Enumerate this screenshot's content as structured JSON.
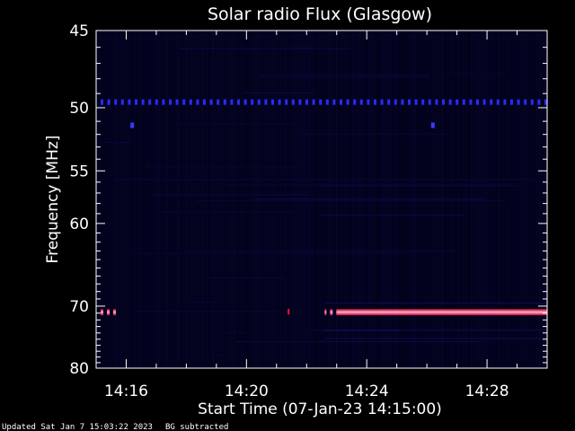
{
  "chart_data": {
    "type": "heatmap",
    "title": "Solar radio Flux (Glasgow)",
    "xlabel": "Start Time (07-Jan-23 14:15:00)",
    "ylabel": "Frequency [MHz]",
    "x_start_minutes": 0,
    "x_end_minutes": 15,
    "x_ticks": [
      {
        "label": "14:16",
        "minutes": 1
      },
      {
        "label": "14:20",
        "minutes": 5
      },
      {
        "label": "14:24",
        "minutes": 9
      },
      {
        "label": "14:28",
        "minutes": 13
      }
    ],
    "y_scale": "reciprocal",
    "ylim": [
      45,
      80
    ],
    "y_ticks": [
      45,
      50,
      55,
      60,
      70,
      80
    ],
    "y_tick_labels": [
      "45",
      "50",
      "55",
      "60",
      "70",
      "80"
    ],
    "colors": {
      "background": "#000000",
      "plot_background": "#02021a",
      "axes": "#ffffff",
      "low_signal": "#1a1a8c",
      "interference_band": "#ff1040",
      "interference_core": "#ffd0e0"
    },
    "features": [
      {
        "name": "blue dashed line",
        "frequency_mhz": 49.6,
        "x_start_minutes": 0.15,
        "x_end_minutes": 15,
        "color": "#2a2aff",
        "pattern": "dashed"
      },
      {
        "name": "blue dot",
        "frequency_mhz": 51.3,
        "x_minutes": 1.2,
        "color": "#3a3aff"
      },
      {
        "name": "blue dot",
        "frequency_mhz": 51.3,
        "x_minutes": 11.2,
        "color": "#3a3aff"
      },
      {
        "name": "red band segment",
        "frequency_mhz": 70.8,
        "x_start_minutes": 0.15,
        "x_end_minutes": 0.6,
        "color": "#ff1040",
        "pattern": "dashed"
      },
      {
        "name": "red band tick",
        "frequency_mhz": 70.8,
        "x_minutes": 6.4,
        "color": "#ff1040"
      },
      {
        "name": "red band segment",
        "frequency_mhz": 70.8,
        "x_start_minutes": 7.6,
        "x_end_minutes": 15,
        "color": "#ff1040",
        "pattern": "solid"
      }
    ],
    "grid": false,
    "legend": "none"
  },
  "footer": {
    "updated": "Updated Sat Jan  7 15:03:22 2023",
    "note": "BG subtracted"
  }
}
